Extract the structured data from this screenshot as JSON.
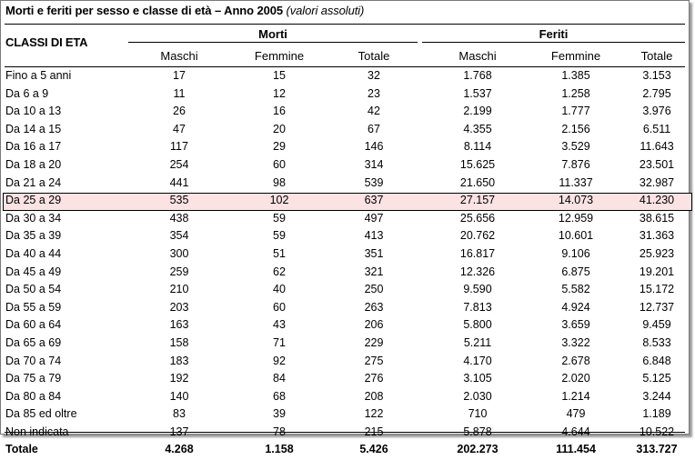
{
  "title": "Morti e feriti per sesso e classe di età – Anno 2005",
  "subtitle": "(valori assoluti)",
  "header": {
    "classi": "CLASSI DI ETA",
    "morti": "Morti",
    "feriti": "Feriti",
    "columns": [
      "Maschi",
      "Femmine",
      "Totale",
      "Maschi",
      "Femmine",
      "Totale"
    ]
  },
  "rows": [
    {
      "label": "Fino a 5 anni",
      "values": [
        "17",
        "15",
        "32",
        "1.768",
        "1.385",
        "3.153"
      ]
    },
    {
      "label": "Da 6 a 9",
      "values": [
        "11",
        "12",
        "23",
        "1.537",
        "1.258",
        "2.795"
      ]
    },
    {
      "label": "Da 10 a 13",
      "values": [
        "26",
        "16",
        "42",
        "2.199",
        "1.777",
        "3.976"
      ]
    },
    {
      "label": "Da 14 a 15",
      "values": [
        "47",
        "20",
        "67",
        "4.355",
        "2.156",
        "6.511"
      ]
    },
    {
      "label": "Da 16 a 17",
      "values": [
        "117",
        "29",
        "146",
        "8.114",
        "3.529",
        "11.643"
      ]
    },
    {
      "label": "Da 18 a 20",
      "values": [
        "254",
        "60",
        "314",
        "15.625",
        "7.876",
        "23.501"
      ]
    },
    {
      "label": "Da 21 a 24",
      "values": [
        "441",
        "98",
        "539",
        "21.650",
        "11.337",
        "32.987"
      ]
    },
    {
      "label": "Da 25 a 29",
      "values": [
        "535",
        "102",
        "637",
        "27.157",
        "14.073",
        "41.230"
      ],
      "highlight": true
    },
    {
      "label": "Da 30 a 34",
      "values": [
        "438",
        "59",
        "497",
        "25.656",
        "12.959",
        "38.615"
      ]
    },
    {
      "label": "Da 35 a 39",
      "values": [
        "354",
        "59",
        "413",
        "20.762",
        "10.601",
        "31.363"
      ]
    },
    {
      "label": "Da 40 a 44",
      "values": [
        "300",
        "51",
        "351",
        "16.817",
        "9.106",
        "25.923"
      ]
    },
    {
      "label": "Da 45 a 49",
      "values": [
        "259",
        "62",
        "321",
        "12.326",
        "6.875",
        "19.201"
      ]
    },
    {
      "label": "Da 50 a 54",
      "values": [
        "210",
        "40",
        "250",
        "9.590",
        "5.582",
        "15.172"
      ]
    },
    {
      "label": "Da 55 a 59",
      "values": [
        "203",
        "60",
        "263",
        "7.813",
        "4.924",
        "12.737"
      ]
    },
    {
      "label": "Da 60 a 64",
      "values": [
        "163",
        "43",
        "206",
        "5.800",
        "3.659",
        "9.459"
      ]
    },
    {
      "label": "Da 65 a 69",
      "values": [
        "158",
        "71",
        "229",
        "5.211",
        "3.322",
        "8.533"
      ]
    },
    {
      "label": "Da 70 a 74",
      "values": [
        "183",
        "92",
        "275",
        "4.170",
        "2.678",
        "6.848"
      ]
    },
    {
      "label": "Da 75 a 79",
      "values": [
        "192",
        "84",
        "276",
        "3.105",
        "2.020",
        "5.125"
      ]
    },
    {
      "label": "Da 80 a 84",
      "values": [
        "140",
        "68",
        "208",
        "2.030",
        "1.214",
        "3.244"
      ]
    },
    {
      "label": "Da 85 ed oltre",
      "values": [
        "83",
        "39",
        "122",
        "710",
        "479",
        "1.189"
      ]
    },
    {
      "label": "Non indicata",
      "values": [
        "137",
        "78",
        "215",
        "5.878",
        "4.644",
        "10.522"
      ]
    },
    {
      "label": "Totale",
      "values": [
        "4.268",
        "1.158",
        "5.426",
        "202.273",
        "111.454",
        "313.727"
      ],
      "total": true
    }
  ],
  "colors": {
    "highlight_row": "#fbe2e3",
    "border": "#000000"
  }
}
